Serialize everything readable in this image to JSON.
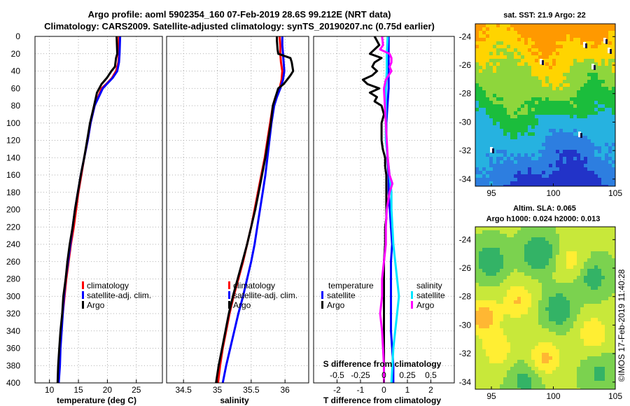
{
  "header": {
    "title_line1": "Argo profile: aoml 5902354_160 07-Feb-2019 28.6S 99.212E (NRT data)",
    "title_line2": "Climatology: CARS2009. Satellite-adjusted climatology: synTS_20190207.nc (0.75d earlier)"
  },
  "colors": {
    "climatology": "#ff0000",
    "satellite": "#0000ff",
    "argo": "#000000",
    "sat_salinity": "#00e5ff",
    "argo_salinity": "#ff00ff",
    "frame": "#000000",
    "grid": "#999999"
  },
  "depth_axis": {
    "ticks": [
      0,
      20,
      40,
      60,
      80,
      100,
      120,
      140,
      160,
      180,
      200,
      220,
      240,
      260,
      280,
      300,
      320,
      340,
      360,
      380,
      400
    ],
    "ylim": [
      0,
      400
    ]
  },
  "chart_data": [
    {
      "id": "temperature",
      "type": "line",
      "xlabel": "temperature (deg C)",
      "xlim": [
        7.5,
        29.5
      ],
      "xticks": [
        10,
        15,
        20,
        25
      ],
      "legend": [
        "climatology",
        "satellite-adj. clim.",
        "Argo"
      ],
      "series": [
        {
          "name": "climatology",
          "color": "red",
          "depth": [
            0,
            20,
            30,
            40,
            48,
            55,
            60,
            80,
            100,
            120,
            140,
            160,
            180,
            200,
            220,
            240,
            260,
            280,
            300,
            320,
            340,
            360,
            380,
            400
          ],
          "values": [
            22.0,
            22.0,
            21.9,
            21.5,
            20.8,
            19.8,
            19.0,
            17.8,
            17.1,
            16.6,
            16.0,
            15.5,
            15.0,
            14.6,
            14.2,
            13.7,
            13.3,
            12.9,
            12.6,
            12.3,
            12.0,
            11.8,
            11.6,
            11.5
          ]
        },
        {
          "name": "satellite-adj. clim.",
          "color": "blue",
          "depth": [
            0,
            20,
            30,
            40,
            48,
            55,
            60,
            80,
            100,
            120,
            140,
            160,
            180,
            200,
            220,
            240,
            260,
            280,
            300,
            320,
            340,
            360,
            380,
            400
          ],
          "values": [
            22.2,
            22.1,
            22.0,
            21.7,
            20.9,
            19.9,
            19.2,
            17.8,
            17.1,
            16.6,
            16.0,
            15.4,
            14.9,
            14.4,
            14.0,
            13.6,
            13.2,
            12.8,
            12.5,
            12.3,
            12.1,
            11.9,
            11.8,
            11.6
          ]
        },
        {
          "name": "Argo",
          "color": "black",
          "depth": [
            0,
            20,
            25,
            35,
            40,
            48,
            55,
            65,
            80,
            100,
            120,
            140,
            160,
            180,
            200,
            220,
            240,
            260,
            280,
            300,
            320,
            340,
            360,
            380,
            400
          ],
          "values": [
            21.6,
            21.7,
            21.5,
            21.3,
            20.7,
            19.9,
            19.0,
            18.2,
            17.7,
            17.0,
            16.5,
            16.0,
            15.4,
            14.9,
            14.4,
            14.0,
            13.5,
            13.1,
            12.8,
            12.4,
            12.2,
            11.9,
            11.7,
            11.5,
            11.4
          ]
        }
      ]
    },
    {
      "id": "salinity",
      "type": "line",
      "xlabel": "salinity",
      "xlim": [
        34.25,
        36.35
      ],
      "xticks": [
        34.5,
        35,
        35.5,
        36
      ],
      "xtick_labels": [
        "34.5",
        "35",
        "35.5",
        "36"
      ],
      "legend": [
        "climatology",
        "satellite-adj. clim.",
        "Argo"
      ],
      "series": [
        {
          "name": "climatology",
          "color": "red",
          "depth": [
            0,
            10,
            20,
            30,
            40,
            50,
            60,
            70,
            80,
            100,
            120,
            140,
            160,
            180,
            200,
            220,
            240,
            260,
            280,
            300,
            320,
            340,
            360,
            380,
            400
          ],
          "values": [
            35.92,
            35.93,
            35.93,
            35.94,
            35.96,
            35.95,
            35.92,
            35.86,
            35.82,
            35.78,
            35.74,
            35.7,
            35.65,
            35.6,
            35.55,
            35.5,
            35.44,
            35.38,
            35.31,
            35.24,
            35.18,
            35.13,
            35.08,
            35.04,
            35.01
          ]
        },
        {
          "name": "satellite-adj. clim.",
          "color": "blue",
          "depth": [
            0,
            10,
            20,
            30,
            40,
            50,
            60,
            70,
            80,
            100,
            120,
            140,
            160,
            180,
            200,
            220,
            240,
            260,
            280,
            300,
            320,
            340,
            360,
            380,
            400
          ],
          "values": [
            35.96,
            35.96,
            35.97,
            35.98,
            35.99,
            35.97,
            35.93,
            35.88,
            35.84,
            35.8,
            35.77,
            35.74,
            35.71,
            35.67,
            35.63,
            35.59,
            35.55,
            35.5,
            35.44,
            35.38,
            35.31,
            35.25,
            35.19,
            35.13,
            35.08
          ]
        },
        {
          "name": "Argo",
          "color": "black",
          "depth": [
            0,
            5,
            15,
            20,
            25,
            30,
            40,
            45,
            50,
            55,
            60,
            70,
            80,
            100,
            120,
            140,
            160,
            180,
            200,
            220,
            240,
            260,
            280,
            300,
            320,
            340,
            360,
            380,
            400
          ],
          "values": [
            35.88,
            35.88,
            35.89,
            35.9,
            36.08,
            36.1,
            36.12,
            36.08,
            36.03,
            35.98,
            35.9,
            35.86,
            35.82,
            35.79,
            35.75,
            35.71,
            35.66,
            35.61,
            35.56,
            35.5,
            35.44,
            35.37,
            35.3,
            35.23,
            35.17,
            35.12,
            35.07,
            35.02,
            34.98
          ]
        }
      ]
    },
    {
      "id": "difference",
      "type": "line",
      "xlabel": "T difference from climatology",
      "xlabel_top": "S difference from climatology",
      "xlim": [
        -3,
        3
      ],
      "xticks": [
        -2,
        -1,
        0,
        1,
        2
      ],
      "s_ticks": [
        "-0.5",
        "-0.25",
        "0",
        "0.25",
        "0.5"
      ],
      "legend_temperature_title": "temperature",
      "legend_salinity_title": "salinity",
      "legend_temperature": [
        "satellite",
        "Argo"
      ],
      "legend_salinity": [
        "satellite",
        "Argo"
      ],
      "series": [
        {
          "name": "temperature satellite",
          "color": "blue",
          "depth": [
            0,
            20,
            40,
            60,
            80,
            100,
            120,
            140,
            160,
            180,
            200,
            220,
            240,
            260,
            280,
            300,
            320,
            340,
            360,
            380,
            400
          ],
          "values": [
            0.2,
            0.2,
            0.2,
            0.2,
            0.15,
            0.1,
            0.1,
            0.15,
            0.2,
            0.2,
            0.25,
            0.3,
            0.35,
            0.3,
            0.3,
            0.3,
            0.3,
            0.3,
            0.35,
            0.4,
            0.4
          ]
        },
        {
          "name": "temperature Argo",
          "color": "black",
          "depth": [
            0,
            10,
            20,
            25,
            30,
            35,
            40,
            45,
            50,
            55,
            60,
            65,
            70,
            75,
            80,
            90,
            100,
            110,
            120,
            130,
            140,
            150,
            160,
            170,
            180,
            190,
            200,
            210,
            220,
            240,
            260,
            280,
            300,
            320,
            340,
            360,
            380,
            400
          ],
          "values": [
            -0.4,
            -0.2,
            -0.6,
            -0.1,
            -0.4,
            -0.5,
            -0.3,
            -0.5,
            -0.9,
            -0.7,
            -0.2,
            -0.6,
            -0.3,
            -0.4,
            -0.1,
            0.0,
            -0.1,
            -0.1,
            -0.1,
            -0.05,
            0.05,
            0.05,
            0.1,
            0.1,
            0.1,
            0.1,
            0.1,
            0.1,
            0.05,
            0.05,
            0.0,
            0.0,
            0.0,
            0.0,
            0.0,
            0.0,
            0.0,
            0.0
          ]
        },
        {
          "name": "salinity satellite",
          "color": "cyan",
          "depth": [
            0,
            20,
            40,
            60,
            80,
            100,
            120,
            140,
            160,
            180,
            200,
            220,
            240,
            260,
            280,
            300,
            320,
            340,
            360,
            380,
            400
          ],
          "values": [
            0.04,
            0.03,
            0.03,
            0.02,
            0.02,
            0.02,
            0.02,
            0.04,
            0.06,
            0.08,
            0.08,
            0.09,
            0.1,
            0.12,
            0.14,
            0.16,
            0.14,
            0.12,
            0.1,
            0.09,
            0.08
          ]
        },
        {
          "name": "salinity Argo",
          "color": "magenta",
          "depth": [
            0,
            10,
            15,
            20,
            25,
            30,
            35,
            40,
            45,
            50,
            60,
            80,
            100,
            120,
            140,
            160,
            170,
            180,
            200,
            220,
            240,
            260,
            280,
            300,
            320,
            340,
            360,
            380,
            400
          ],
          "values": [
            -0.02,
            -0.01,
            -0.04,
            0.06,
            0.08,
            0.08,
            0.06,
            0.08,
            0.05,
            0.02,
            0.0,
            0.01,
            0.02,
            0.03,
            0.04,
            0.06,
            0.09,
            0.06,
            0.03,
            0.02,
            0.02,
            0.0,
            -0.02,
            -0.02,
            -0.04,
            -0.02,
            -0.01,
            0.0,
            0.0
          ]
        }
      ]
    },
    {
      "id": "sst_map",
      "type": "heatmap",
      "title": "sat. SST: 21.9 Argo: 22",
      "xticks": [
        95,
        100,
        105
      ],
      "yticks": [
        -24,
        -26,
        -28,
        -30,
        -32,
        -34
      ],
      "xlim": [
        93.7,
        105
      ],
      "ylim": [
        -34.5,
        -23.1
      ],
      "palette": [
        "#ff9900",
        "#ffd400",
        "#8ed63c",
        "#1bbd3c",
        "#26b2e0",
        "#2d7ee0",
        "#2233c8"
      ]
    },
    {
      "id": "sla_map",
      "type": "heatmap",
      "title": "Altim. SLA: 0.065",
      "subtitle": "Argo h1000: 0.024 h2000: 0.013",
      "xticks": [
        95,
        100,
        105
      ],
      "yticks": [
        -24,
        -26,
        -28,
        -30,
        -32,
        -34
      ],
      "xlim": [
        93.7,
        105
      ],
      "ylim": [
        -34.5,
        -23.1
      ],
      "palette": [
        "#33b366",
        "#7bd24f",
        "#c8e83a",
        "#ffee33",
        "#ffb733"
      ]
    }
  ],
  "footer": {
    "stamp": "©IMOS 17-Feb-2019 11:40:28"
  }
}
